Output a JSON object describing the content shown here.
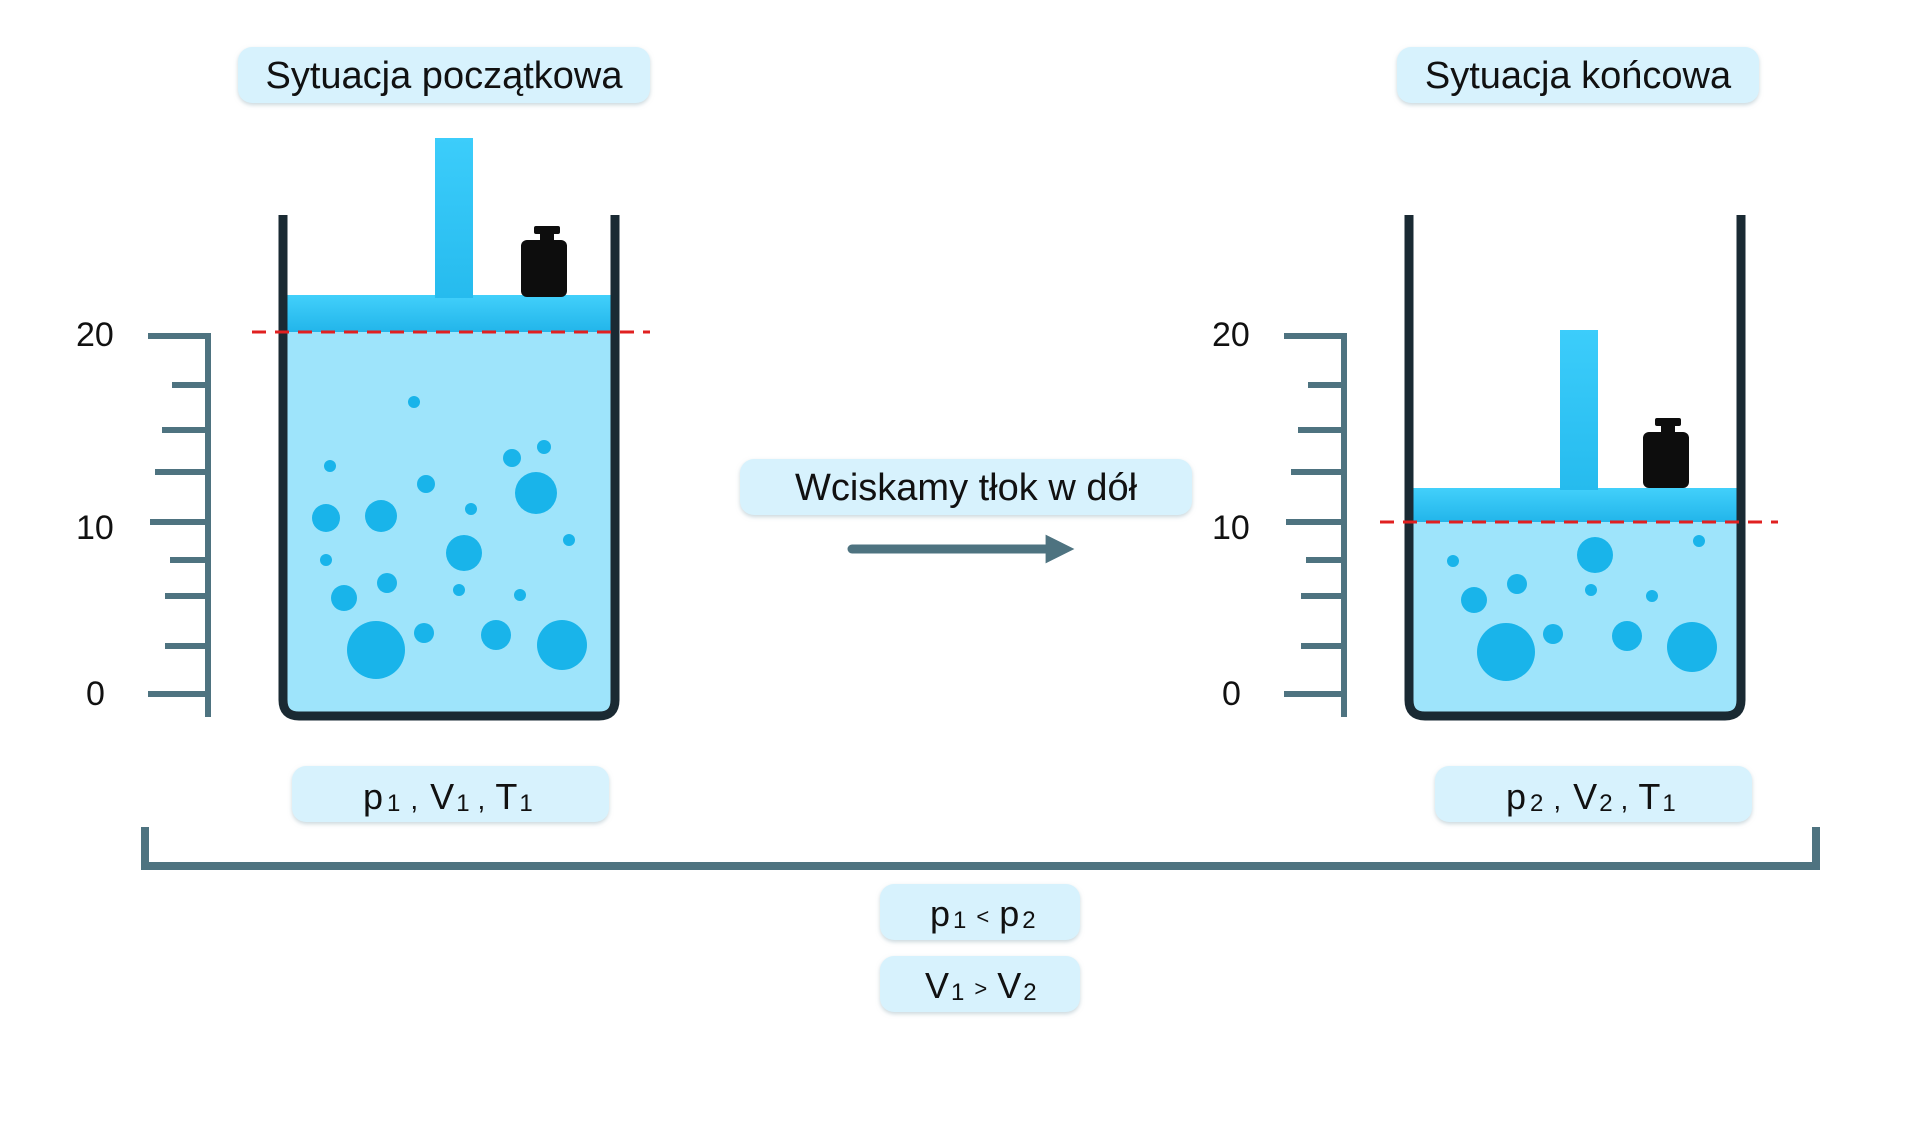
{
  "initial": {
    "title": "Sytuacja początkowa",
    "params": {
      "p": "p",
      "p_sub": "1",
      "v": "V",
      "v_sub": "1",
      "t": "T",
      "t_sub": "1"
    }
  },
  "final": {
    "title": "Sytuacja końcowa",
    "params": {
      "p": "p",
      "p_sub": "2",
      "v": "V",
      "v_sub": "2",
      "t": "T",
      "t_sub": "1"
    }
  },
  "action_label": "Wciskamy tłok w dół",
  "scale_labels": {
    "top": "20",
    "middle": "10",
    "bottom": "0"
  },
  "comparisons": {
    "pressure": {
      "left": "p",
      "left_sub": "1",
      "op": "<",
      "right": "p",
      "right_sub": "2"
    },
    "volume": {
      "left": "V",
      "left_sub": "1",
      "op": ">",
      "right": "V",
      "right_sub": "2"
    }
  },
  "volume_levels": {
    "initial": 20,
    "final": 10,
    "scale_max": 20,
    "scale_min": 0
  },
  "colors": {
    "water_light": "#9ee4fb",
    "piston": "#3ccdfb",
    "bubble": "#19b4ea",
    "container": "#1a2a33",
    "scale": "#4e7380",
    "dashed_line": "#e02020",
    "pill_bg": "#d7f2fd",
    "arrow": "#4e7380",
    "weight": "#0d0d0d"
  }
}
